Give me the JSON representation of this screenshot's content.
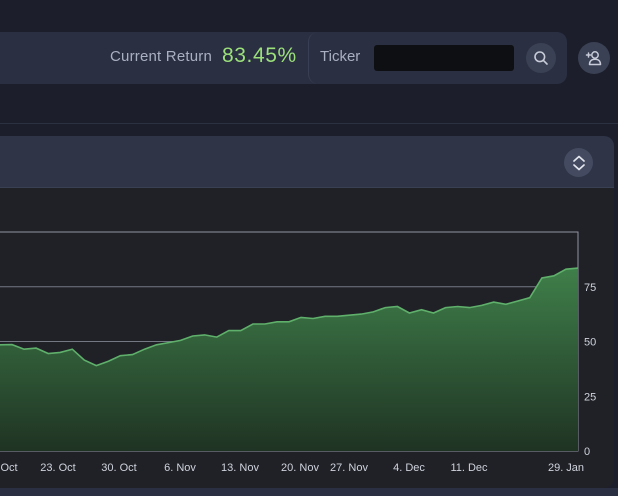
{
  "header": {
    "current_return_label": "Current Return",
    "current_return_value": "83.45%",
    "ticker_label": "Ticker",
    "ticker_value": "",
    "search_icon": "search-icon",
    "user_icon": "user-add-icon"
  },
  "card": {
    "expand_icon": "chevron-up-down-icon"
  },
  "colors": {
    "accent_green": "#9be07b",
    "area_fill_top": "#3f7f4a",
    "area_fill_bottom": "#1f3323",
    "area_line": "#5fb06b"
  },
  "chart_data": {
    "type": "area",
    "x_tick_labels": [
      "Oct",
      "23. Oct",
      "30. Oct",
      "6. Nov",
      "13. Nov",
      "20. Nov",
      "27. Nov",
      "4. Dec",
      "11. Dec",
      "29. Jan"
    ],
    "y_tick_labels": [
      "0",
      "25",
      "50",
      "75"
    ],
    "ylim": [
      0,
      100
    ],
    "grid": true,
    "series": [
      {
        "values": [
          48.5,
          48.6,
          46.5,
          47.0,
          44.5,
          45.0,
          46.5,
          41.5,
          39.0,
          41.0,
          43.5,
          44.0,
          46.5,
          48.5,
          49.5,
          50.5,
          52.5,
          53.0,
          52.0,
          55.0,
          55.0,
          58.0,
          58.0,
          59.0,
          59.0,
          61.0,
          60.5,
          61.5,
          61.5,
          62.0,
          62.5,
          63.5,
          65.5,
          66.0,
          63.0,
          64.5,
          63.0,
          65.5,
          66.0,
          65.5,
          66.5,
          68.0,
          67.0,
          68.5,
          70.0,
          79.0,
          80.0,
          83.0,
          83.5
        ]
      }
    ]
  }
}
